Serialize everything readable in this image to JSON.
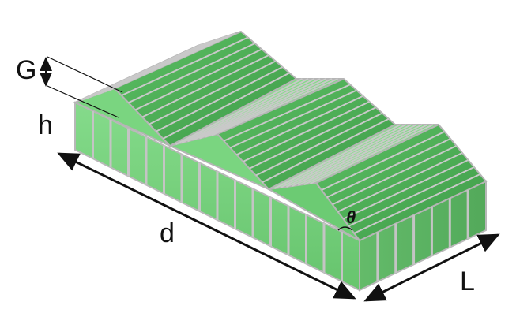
{
  "labels": {
    "gutter_height": "G",
    "wall_height": "h",
    "length": "d",
    "bay_width": "L",
    "roof_angle": "θ"
  },
  "colors": {
    "glass_light": "#8fe08f",
    "glass_mid": "#6fcf72",
    "glass_dark": "#4fa857",
    "frame": "#b8b8b8",
    "frame_dark": "#8a8a8a",
    "ink": "#111111"
  },
  "structure": {
    "spans": 3,
    "icons": [
      "greenhouse-illustration",
      "double-arrow-icon",
      "angle-arc-icon"
    ]
  }
}
